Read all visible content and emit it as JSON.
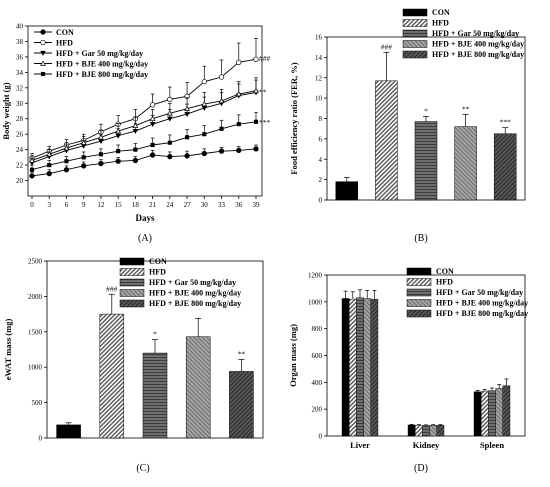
{
  "figure": {
    "legend_labels": [
      "CON",
      "HFD",
      "HFD + Gar 50 mg/kg/day",
      "HFD + BJE 400 mg/kg/day",
      "HFD + BJE 800 mg/kg/day"
    ]
  },
  "chart_data": [
    {
      "panel": "(A)",
      "type": "line",
      "xlabel": "Days",
      "ylabel": "Body weight (g)",
      "x": [
        0,
        3,
        6,
        9,
        12,
        15,
        18,
        21,
        24,
        27,
        30,
        33,
        36,
        39
      ],
      "xlim": [
        0,
        39
      ],
      "ylim": [
        18,
        40
      ],
      "yticks": [
        20,
        22,
        24,
        26,
        28,
        30,
        32,
        34,
        36,
        38,
        40
      ],
      "grid": false,
      "legend": "top-left",
      "series": [
        {
          "name": "CON",
          "marker": "filled-circle",
          "values": [
            20.6,
            20.9,
            21.4,
            21.9,
            22.2,
            22.5,
            22.6,
            23.3,
            23.1,
            23.2,
            23.5,
            23.8,
            23.9,
            24.1
          ],
          "err": [
            0.5,
            0.5,
            0.5,
            0.5,
            0.5,
            0.5,
            0.5,
            0.6,
            0.6,
            0.6,
            0.6,
            0.5,
            0.5,
            0.5
          ]
        },
        {
          "name": "HFD",
          "marker": "open-circle",
          "values": [
            22.9,
            23.8,
            24.6,
            25.2,
            26.3,
            27.3,
            28.0,
            29.8,
            30.5,
            30.9,
            32.8,
            33.4,
            35.3,
            35.7
          ],
          "err": [
            0.6,
            0.6,
            0.7,
            0.8,
            1.0,
            1.1,
            1.2,
            1.4,
            1.6,
            1.8,
            2.0,
            2.2,
            2.5,
            2.7
          ]
        },
        {
          "name": "HFD + Gar 50 mg/kg/day",
          "marker": "filled-triangle-down",
          "values": [
            22.3,
            23.1,
            23.9,
            24.5,
            25.1,
            25.8,
            26.4,
            27.3,
            28.0,
            28.6,
            29.4,
            30.0,
            31.0,
            31.4
          ],
          "err": [
            0.6,
            0.6,
            0.7,
            0.7,
            0.8,
            0.9,
            1.0,
            1.1,
            1.2,
            1.3,
            1.4,
            1.4,
            1.5,
            1.6
          ]
        },
        {
          "name": "HFD + BJE 400 mg/kg/day",
          "marker": "open-triangle-up",
          "values": [
            22.6,
            23.4,
            24.2,
            24.9,
            25.6,
            26.4,
            27.1,
            28.0,
            28.7,
            29.3,
            29.9,
            30.3,
            31.2,
            31.6
          ],
          "err": [
            0.6,
            0.6,
            0.7,
            0.8,
            0.9,
            1.0,
            1.1,
            1.2,
            1.3,
            1.4,
            1.5,
            1.5,
            1.6,
            1.7
          ]
        },
        {
          "name": "HFD + BJE 800 mg/kg/day",
          "marker": "filled-square",
          "values": [
            21.4,
            22.0,
            22.5,
            23.0,
            23.4,
            23.8,
            24.0,
            24.6,
            24.9,
            25.6,
            26.0,
            26.7,
            27.3,
            27.6
          ],
          "err": [
            0.6,
            0.6,
            0.6,
            0.7,
            0.7,
            0.8,
            0.8,
            0.9,
            1.0,
            1.0,
            1.1,
            1.1,
            1.2,
            1.2
          ]
        }
      ],
      "annotations": [
        "###",
        "**",
        "***"
      ]
    },
    {
      "panel": "(B)",
      "type": "bar",
      "ylabel": "Food efficiency ratio (FER, %)",
      "categories": [
        "CON",
        "HFD",
        "HFD + Gar 50 mg/kg/day",
        "HFD + BJE 400 mg/kg/day",
        "HFD + BJE 800 mg/kg/day"
      ],
      "values": [
        1.8,
        11.7,
        7.7,
        7.2,
        6.5
      ],
      "err": [
        0.4,
        2.8,
        0.5,
        1.2,
        0.6
      ],
      "ylim": [
        0,
        16
      ],
      "yticks": [
        0,
        2,
        4,
        6,
        8,
        10,
        12,
        14,
        16
      ],
      "legend": "top-right",
      "annotations": [
        "",
        "###",
        "*",
        "**",
        "***"
      ]
    },
    {
      "panel": "(C)",
      "type": "bar",
      "ylabel": "eWAT mass (mg)",
      "categories": [
        "CON",
        "HFD",
        "HFD + Gar 50 mg/kg/day",
        "HFD + BJE 400 mg/kg/day",
        "HFD + BJE 800 mg/kg/day"
      ],
      "values": [
        185,
        1750,
        1200,
        1430,
        940
      ],
      "err": [
        30,
        280,
        190,
        260,
        170
      ],
      "ylim": [
        0,
        2500
      ],
      "yticks": [
        0,
        500,
        1000,
        1500,
        2000,
        2500
      ],
      "legend": "top-left",
      "annotations": [
        "",
        "###",
        "*",
        "",
        "**"
      ]
    },
    {
      "panel": "(D)",
      "type": "bar",
      "ylabel": "Organ mass (mg)",
      "categories": [
        "Liver",
        "Kidney",
        "Spleen"
      ],
      "series": [
        {
          "name": "CON",
          "values": [
            1025,
            82,
            330
          ],
          "err": [
            55,
            5,
            10
          ]
        },
        {
          "name": "HFD",
          "values": [
            1020,
            80,
            335
          ],
          "err": [
            55,
            5,
            12
          ]
        },
        {
          "name": "HFD + Gar 50 mg/kg/day",
          "values": [
            1030,
            78,
            338
          ],
          "err": [
            60,
            5,
            20
          ]
        },
        {
          "name": "HFD + BJE 400 mg/kg/day",
          "values": [
            1025,
            80,
            355
          ],
          "err": [
            60,
            5,
            30
          ]
        },
        {
          "name": "HFD + BJE 800 mg/kg/day",
          "values": [
            1020,
            80,
            375
          ],
          "err": [
            65,
            5,
            50
          ]
        }
      ],
      "ylim": [
        0,
        1200
      ],
      "yticks": [
        0,
        200,
        400,
        600,
        800,
        1000,
        1200
      ],
      "legend": "top-right"
    }
  ]
}
